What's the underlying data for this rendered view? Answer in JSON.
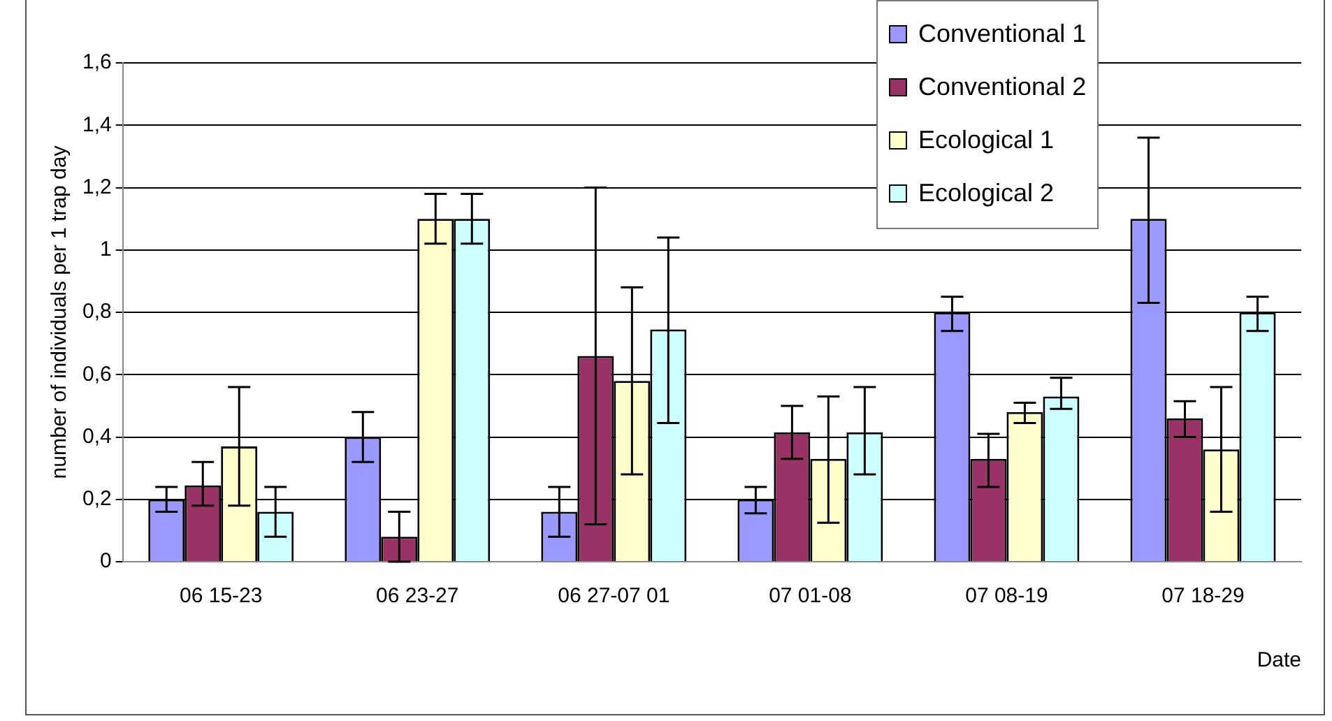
{
  "chart_data": {
    "type": "bar",
    "ylabel": "number of individuals per 1 trap day",
    "xlabel": "Date",
    "categories": [
      "06 15-23",
      "06 23-27",
      "06 27-07 01",
      "07 01-08",
      "07 08-19",
      "07 18-29"
    ],
    "series": [
      {
        "name": "Conventional 1",
        "color": "#9999ff",
        "values": [
          0.2,
          0.4,
          0.16,
          0.2,
          0.8,
          1.1
        ],
        "errors": [
          [
            0.16,
            0.24
          ],
          [
            0.32,
            0.48
          ],
          [
            0.08,
            0.24
          ],
          [
            0.155,
            0.24
          ],
          [
            0.74,
            0.85
          ],
          [
            0.83,
            1.36
          ]
        ]
      },
      {
        "name": "Conventional 2",
        "color": "#993366",
        "values": [
          0.245,
          0.08,
          0.66,
          0.415,
          0.33,
          0.46
        ],
        "errors": [
          [
            0.18,
            0.32
          ],
          [
            0,
            0.16
          ],
          [
            0.12,
            1.2
          ],
          [
            0.33,
            0.5
          ],
          [
            0.24,
            0.41
          ],
          [
            0.4,
            0.515
          ]
        ]
      },
      {
        "name": "Ecological 1",
        "color": "#ffffcc",
        "values": [
          0.37,
          1.1,
          0.58,
          0.33,
          0.48,
          0.36
        ],
        "errors": [
          [
            0.18,
            0.56
          ],
          [
            1.02,
            1.18
          ],
          [
            0.28,
            0.88
          ],
          [
            0.125,
            0.53
          ],
          [
            0.445,
            0.51
          ],
          [
            0.16,
            0.56
          ]
        ]
      },
      {
        "name": "Ecological 2",
        "color": "#ccffff",
        "values": [
          0.16,
          1.1,
          0.745,
          0.415,
          0.53,
          0.8
        ],
        "errors": [
          [
            0.08,
            0.24
          ],
          [
            1.02,
            1.18
          ],
          [
            0.445,
            1.04
          ],
          [
            0.28,
            0.56
          ],
          [
            0.49,
            0.59
          ],
          [
            0.74,
            0.85
          ]
        ]
      }
    ],
    "ylim": [
      0,
      1.6
    ],
    "yticks": [
      0,
      {
        "value": 0.2,
        "label": "0,2"
      },
      {
        "value": 0.4,
        "label": "0,4"
      },
      {
        "value": 0.6,
        "label": "0,6"
      },
      {
        "value": 0.8,
        "label": "0,8"
      },
      1,
      {
        "value": 1.2,
        "label": "1,2"
      },
      {
        "value": 1.4,
        "label": "1,4"
      },
      {
        "value": 1.6,
        "label": "1,6"
      }
    ],
    "grid": "y",
    "legend": "top right"
  }
}
